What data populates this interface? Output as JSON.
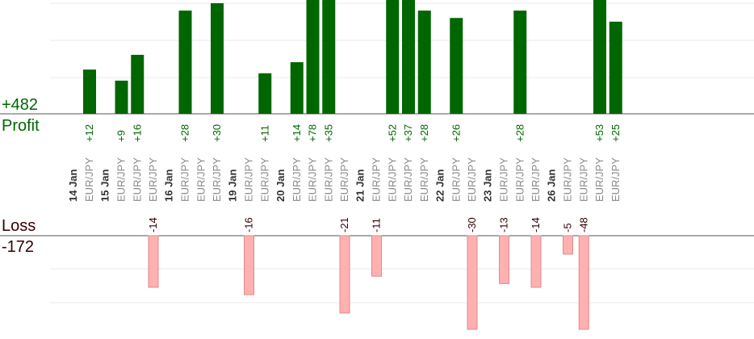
{
  "summary": {
    "profit_total": "+482",
    "profit_label": "Profit",
    "loss_label": "Loss",
    "loss_total": "-172"
  },
  "colors": {
    "profit_bar": "#006600",
    "loss_bar": "#ffb0b0",
    "profit_text": "#006600",
    "loss_text": "#330000",
    "axis": "#555555",
    "grid": "#e8e8e8"
  },
  "chart_data": {
    "type": "bar",
    "grid": true,
    "profit_axis_max": 30,
    "loss_axis_max": 30,
    "columns": [
      {
        "date": "14 Jan",
        "pair": "EUR/JPY",
        "profit": 12
      },
      {
        "date": "",
        "pair": "",
        "profit": null
      },
      {
        "date": "15 Jan",
        "pair": "EUR/JPY",
        "profit": 9
      },
      {
        "date": "",
        "pair": "EUR/JPY",
        "profit": 16
      },
      {
        "date": "",
        "pair": "EUR/JPY",
        "loss": 14
      },
      {
        "date": "",
        "pair": "",
        "profit": null
      },
      {
        "date": "16 Jan",
        "pair": "EUR/JPY",
        "profit": 28
      },
      {
        "date": "",
        "pair": "EUR/JPY"
      },
      {
        "date": "",
        "pair": "EUR/JPY",
        "profit": 30
      },
      {
        "date": "",
        "pair": "",
        "profit": null
      },
      {
        "date": "19 Jan",
        "pair": "EUR/JPY",
        "loss": 16
      },
      {
        "date": "",
        "pair": "EUR/JPY",
        "profit": 11
      },
      {
        "date": "",
        "pair": "",
        "profit": null
      },
      {
        "date": "20 Jan",
        "pair": "EUR/JPY",
        "profit": 14
      },
      {
        "date": "",
        "pair": "EUR/JPY",
        "profit": 78
      },
      {
        "date": "",
        "pair": "EUR/JPY",
        "profit": 35
      },
      {
        "date": "",
        "pair": "EUR/JPY",
        "loss": 21
      },
      {
        "date": "",
        "pair": "",
        "profit": null
      },
      {
        "date": "21 Jan",
        "pair": "EUR/JPY",
        "loss": 11
      },
      {
        "date": "",
        "pair": "EUR/JPY",
        "profit": 52
      },
      {
        "date": "",
        "pair": "EUR/JPY",
        "profit": 37
      },
      {
        "date": "",
        "pair": "EUR/JPY",
        "profit": 28
      },
      {
        "date": "",
        "pair": "",
        "profit": null
      },
      {
        "date": "22 Jan",
        "pair": "EUR/JPY",
        "profit": 26
      },
      {
        "date": "",
        "pair": "EUR/JPY",
        "loss": 30
      },
      {
        "date": "",
        "pair": "",
        "profit": null
      },
      {
        "date": "23 Jan",
        "pair": "EUR/JPY",
        "loss": 13
      },
      {
        "date": "",
        "pair": "EUR/JPY",
        "profit": 28
      },
      {
        "date": "",
        "pair": "EUR/JPY",
        "loss": 14
      },
      {
        "date": "",
        "pair": "",
        "profit": null
      },
      {
        "date": "26 Jan",
        "pair": "EUR/JPY",
        "loss": 5
      },
      {
        "date": "",
        "pair": "EUR/JPY",
        "loss": 48
      },
      {
        "date": "",
        "pair": "EUR/JPY",
        "profit": 53
      },
      {
        "date": "",
        "pair": "EUR/JPY",
        "profit": 25
      }
    ]
  }
}
